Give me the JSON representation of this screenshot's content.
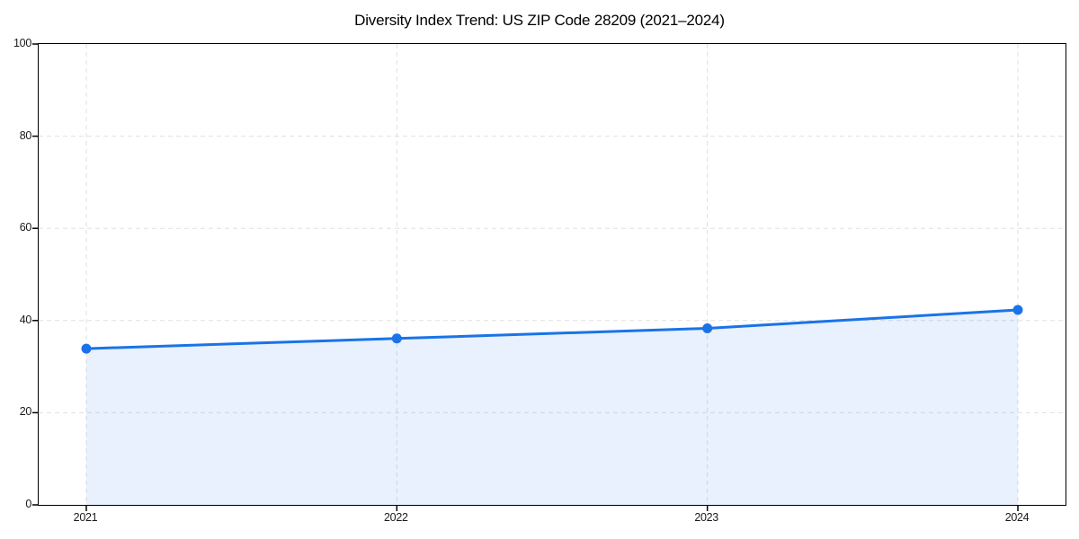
{
  "page": {
    "background": "#ffffff"
  },
  "chart_data": {
    "type": "line",
    "title": "Diversity Index Trend: US ZIP Code 28209 (2021–2024)",
    "categories": [
      "2021",
      "2022",
      "2023",
      "2024"
    ],
    "series": [
      {
        "name": "Diversity Index",
        "values": [
          33.9,
          36.1,
          38.3,
          42.3
        ]
      }
    ],
    "xlabel": "",
    "ylabel": "",
    "ylim": [
      0,
      100
    ],
    "yticks": [
      0,
      20,
      40,
      60,
      80,
      100
    ],
    "grid": true,
    "grid_style": "dashed",
    "area_fill": true,
    "marker": "circle",
    "legend": null,
    "colors": {
      "line": "#1a73e8",
      "marker": "#1a73e8",
      "area_fill_opacity": 0.1,
      "grid": "#dfdfdf",
      "axis": "#000000",
      "tick_text": "#1a1a1a",
      "background": "#ffffff"
    }
  }
}
